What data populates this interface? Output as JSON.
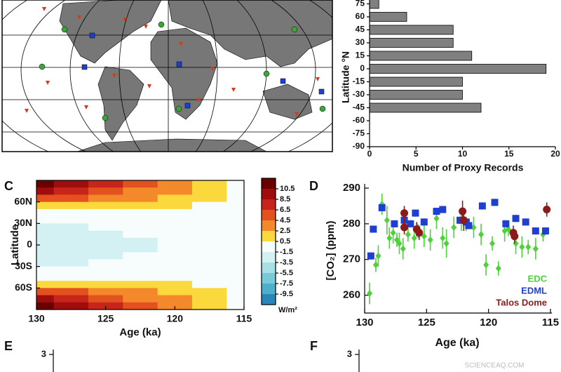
{
  "chart_data": [
    {
      "type": "map"
    },
    {
      "type": "bar",
      "orientation": "horizontal",
      "categories": [
        "75",
        "60",
        "45",
        "30",
        "15",
        "0",
        "-15",
        "-30",
        "-45",
        "-60",
        "-75",
        "-90"
      ],
      "values": [
        1,
        4,
        9,
        9,
        11,
        19,
        10,
        10,
        12,
        0,
        0,
        0
      ],
      "color": "#808080",
      "xlim": [
        0,
        20
      ],
      "xticks": [
        0,
        5,
        10,
        15,
        20
      ],
      "xlabel": "Number of Proxy Records",
      "ylabel": "Latitude °N"
    },
    {
      "type": "contour",
      "panel": "C",
      "xlabel": "Age (ka)",
      "ylabel": "Latitude",
      "xlim": [
        130,
        115
      ],
      "xticks": [
        130,
        125,
        120,
        115
      ],
      "ylim": [
        -90,
        90
      ],
      "yticks": [
        {
          "value": 60,
          "label": "60N"
        },
        {
          "value": 30,
          "label": "30N"
        },
        0,
        {
          "value": -30,
          "label": "30S"
        },
        {
          "value": -60,
          "label": "60S"
        }
      ],
      "x": [
        130,
        127.5,
        125,
        122.5,
        120,
        117.5,
        115
      ],
      "y": [
        85,
        75,
        65,
        55,
        45,
        35,
        25,
        15,
        5,
        -5,
        -15,
        -25,
        -35,
        -45,
        -55,
        -65,
        -75,
        -85
      ],
      "z": [
        [
          11,
          9.5,
          7.5,
          5.5,
          3.5,
          1.5,
          0
        ],
        [
          9.5,
          8,
          6.5,
          4.5,
          3,
          1.2,
          0
        ],
        [
          6.5,
          5.5,
          4.5,
          3.5,
          2.2,
          1,
          0
        ],
        [
          2.5,
          2.2,
          2,
          1.5,
          1,
          0.5,
          0
        ],
        [
          0.2,
          0.2,
          0.2,
          0.1,
          0.1,
          0,
          0
        ],
        [
          -0.8,
          -0.8,
          -0.7,
          -0.5,
          -0.3,
          -0.1,
          0
        ],
        [
          -1.7,
          -1.6,
          -1.4,
          -1.1,
          -0.7,
          -0.3,
          0
        ],
        [
          -2.2,
          -2,
          -1.8,
          -1.4,
          -0.9,
          -0.4,
          0
        ],
        [
          -2.5,
          -2.2,
          -1.9,
          -1.5,
          -1,
          -0.4,
          0
        ],
        [
          -2.5,
          -2.2,
          -1.9,
          -1.5,
          -1,
          -0.4,
          0
        ],
        [
          -2.2,
          -2,
          -1.8,
          -1.4,
          -0.9,
          -0.4,
          0
        ],
        [
          -1.7,
          -1.6,
          -1.4,
          -1.1,
          -0.7,
          -0.3,
          0
        ],
        [
          -0.8,
          -0.8,
          -0.7,
          -0.5,
          -0.3,
          -0.1,
          0
        ],
        [
          0.2,
          0.2,
          0.2,
          0.1,
          0.1,
          0,
          0
        ],
        [
          2.5,
          2.2,
          2,
          1.5,
          1,
          0.5,
          0
        ],
        [
          6.5,
          5.5,
          4.5,
          3.5,
          2.2,
          1,
          0
        ],
        [
          9.5,
          8,
          6.5,
          4.5,
          3,
          1.2,
          0
        ],
        [
          11,
          9.5,
          7.5,
          5.5,
          3.5,
          1.5,
          0
        ]
      ],
      "colorbar": {
        "ticks": [
          10.5,
          8.5,
          6.5,
          4.5,
          2.5,
          0.5,
          -1.5,
          -3.5,
          -5.5,
          -7.5,
          -9.5
        ],
        "colors": [
          "#6b0000",
          "#a00d0d",
          "#c7241a",
          "#e3521e",
          "#f3892b",
          "#fbd93c",
          "#f7fdfd",
          "#d3f1f2",
          "#a6e0e4",
          "#79cad9",
          "#4eafcc",
          "#2a86b8"
        ],
        "label": "W/m²"
      }
    },
    {
      "type": "scatter",
      "panel": "D",
      "xlabel": "Age (ka)",
      "ylabel": "[CO₂] (ppm)",
      "xlim": [
        130,
        115
      ],
      "xticks": [
        130,
        125,
        120,
        115
      ],
      "ylim": [
        255,
        290
      ],
      "yticks": [
        260,
        270,
        280,
        290
      ],
      "series": [
        {
          "name": "EDC",
          "color": "#4fd13c",
          "marker": "diamond",
          "x": [
            129.6,
            129.1,
            128.9,
            128.6,
            128.2,
            128,
            127.7,
            127.4,
            127.2,
            126.9,
            126.5,
            126,
            125.7,
            125.2,
            124.7,
            124.2,
            123.7,
            123.4,
            122.8,
            122.2,
            121.8,
            121.2,
            120.6,
            120.2,
            119.7,
            119.2,
            118.7,
            118.4,
            117.8,
            117.3,
            116.8,
            116.2,
            115.6
          ],
          "values": [
            260.5,
            268.5,
            271,
            285.5,
            281,
            276,
            277.5,
            275.5,
            274.5,
            273,
            277,
            276,
            278,
            276.5,
            275.5,
            281.5,
            276,
            274.5,
            279,
            281,
            280,
            279,
            277,
            268.5,
            274.5,
            267.5,
            278,
            278.5,
            274.5,
            273.5,
            273.5,
            273,
            277
          ],
          "errors": [
            3,
            2,
            3,
            3,
            4,
            3,
            3,
            2,
            3,
            3,
            2,
            3,
            2,
            3,
            3,
            3,
            3,
            4,
            3,
            3,
            2,
            3,
            3,
            3,
            2,
            2,
            3,
            2,
            3,
            3,
            2,
            3,
            2
          ]
        },
        {
          "name": "EDML",
          "color": "#1f3fd0",
          "marker": "square",
          "x": [
            129.5,
            129.3,
            128.6,
            127.6,
            126.8,
            126.3,
            125.9,
            125.2,
            124.2,
            123.7,
            122.3,
            121.8,
            121.6,
            120.5,
            119.5,
            118.6,
            117.8,
            117,
            116.2,
            115.4
          ],
          "values": [
            271,
            278.5,
            284.5,
            280,
            281,
            280,
            283,
            280.5,
            283.5,
            284,
            281,
            280.5,
            279.5,
            285,
            286,
            280,
            281.5,
            280.5,
            278,
            278
          ],
          "errors": [
            1,
            1,
            1,
            1,
            1,
            1,
            1,
            1,
            1,
            1,
            1,
            1,
            1,
            1,
            1,
            1,
            1,
            1,
            1,
            1
          ]
        },
        {
          "name": "Talos Dome",
          "color": "#8b1a1a",
          "marker": "circle",
          "x": [
            126.8,
            126.8,
            125.8,
            125.6,
            122.1,
            122,
            118,
            117.9,
            115.3
          ],
          "values": [
            283,
            279,
            278.5,
            277.5,
            283.5,
            281,
            277.5,
            276.5,
            284
          ],
          "errors": [
            2,
            2,
            2,
            2,
            3,
            3,
            2,
            2,
            2
          ]
        }
      ]
    },
    {
      "type": "line",
      "panel": "E",
      "yticks": [
        3
      ]
    },
    {
      "type": "line",
      "panel": "F",
      "yticks": [
        3
      ]
    }
  ],
  "watermark": "SCIENCEAQ.COM"
}
